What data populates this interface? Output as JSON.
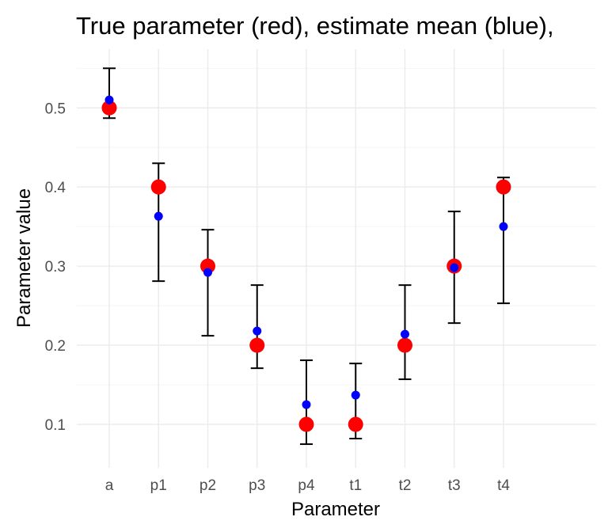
{
  "chart_data": {
    "type": "scatter",
    "title": "True parameter (red), estimate mean (blue),",
    "xlabel": "Parameter",
    "ylabel": "Parameter value",
    "categories": [
      "a",
      "p1",
      "p2",
      "p3",
      "p4",
      "t1",
      "t2",
      "t3",
      "t4"
    ],
    "yticks": [
      "0.1",
      "0.2",
      "0.3",
      "0.4",
      "0.5"
    ],
    "ylim": [
      0.055,
      0.57
    ],
    "grid": true,
    "series": [
      {
        "color": "#ff0000",
        "values": [
          0.5,
          0.4,
          0.3,
          0.2,
          0.1,
          0.1,
          0.2,
          0.3,
          0.4
        ]
      },
      {
        "color": "#0000ff",
        "values": [
          0.51,
          0.363,
          0.292,
          0.218,
          0.125,
          0.137,
          0.214,
          0.298,
          0.35
        ]
      }
    ],
    "error_bars": {
      "color": "#000000",
      "lower": [
        0.487,
        0.281,
        0.212,
        0.171,
        0.075,
        0.082,
        0.157,
        0.228,
        0.253
      ],
      "upper": [
        0.55,
        0.43,
        0.346,
        0.276,
        0.181,
        0.177,
        0.276,
        0.369,
        0.412
      ]
    }
  }
}
